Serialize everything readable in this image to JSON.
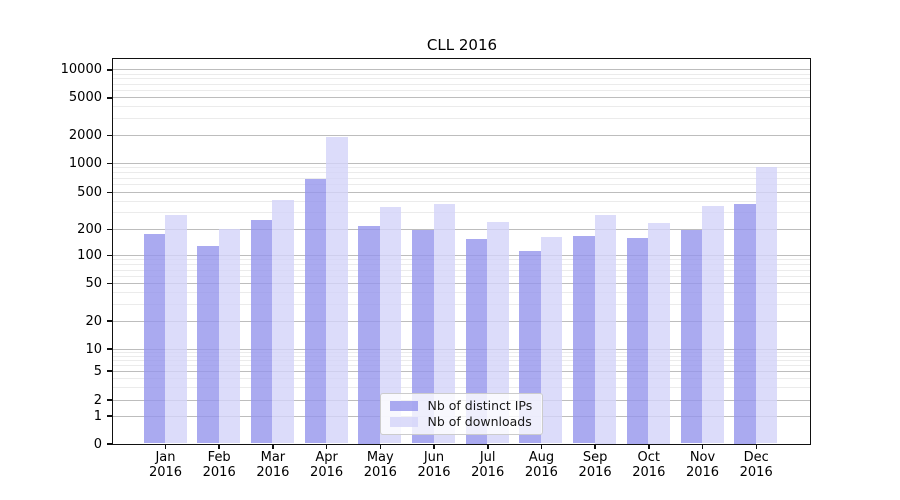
{
  "chart_data": {
    "type": "bar",
    "title": "CLL 2016",
    "categories": [
      "Jan",
      "Feb",
      "Mar",
      "Apr",
      "May",
      "Jun",
      "Jul",
      "Aug",
      "Sep",
      "Oct",
      "Nov",
      "Dec"
    ],
    "category_year": "2016",
    "series": [
      {
        "name": "Nb of distinct IPs",
        "color": "#9595ec",
        "fill_alpha": 0.8,
        "values": [
          174,
          127,
          246,
          680,
          217,
          196,
          155,
          112,
          164,
          159,
          196,
          374
        ]
      },
      {
        "name": "Nb of downloads",
        "color": "#d3d3f9",
        "fill_alpha": 0.8,
        "values": [
          281,
          198,
          410,
          1890,
          340,
          372,
          237,
          163,
          285,
          231,
          354,
          895
        ]
      }
    ],
    "y_ticks": [
      0,
      1,
      2,
      5,
      10,
      20,
      50,
      100,
      200,
      500,
      1000,
      2000,
      5000,
      10000
    ],
    "yscale": "symlog",
    "ylim": [
      0,
      12800
    ],
    "xlabel": "",
    "ylabel": "",
    "grid": "major+minor",
    "legend_position": "lower center",
    "colors": {
      "major_grid": "#bdbdbd",
      "minor_grid": "#ebebeb",
      "spine": "#111111",
      "background": "#ffffff"
    }
  }
}
